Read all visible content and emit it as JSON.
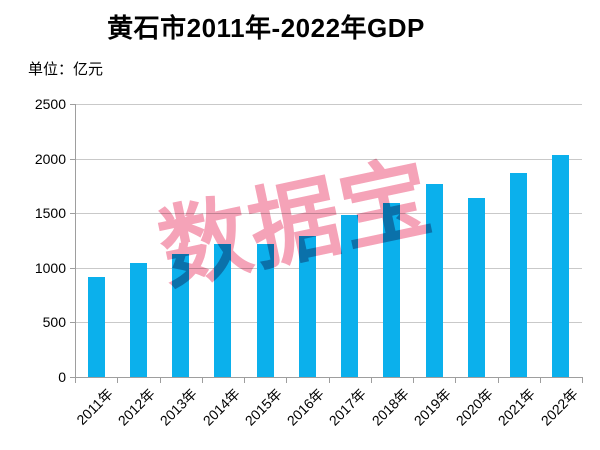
{
  "title": "黄石市2011年-2022年GDP",
  "unit_label": "单位：亿元",
  "watermark": {
    "text": "数据宝",
    "color": "#f5a3b8"
  },
  "colors": {
    "bar": "#0bb0ec",
    "gridline": "#c9c9c9",
    "axis": "#9e9e9e",
    "text": "#000000",
    "background": "#ffffff"
  },
  "chart_data": {
    "type": "bar",
    "title": "黄石市2011年-2022年GDP",
    "unit": "亿元",
    "categories": [
      "2011年",
      "2012年",
      "2013年",
      "2014年",
      "2015年",
      "2016年",
      "2017年",
      "2018年",
      "2019年",
      "2020年",
      "2021年",
      "2022年"
    ],
    "values": [
      920,
      1040,
      1130,
      1215,
      1220,
      1290,
      1480,
      1590,
      1770,
      1640,
      1865,
      2035
    ],
    "xlabel": "",
    "ylabel": "单位：亿元",
    "ylim": [
      0,
      2500
    ],
    "ytick_step": 500,
    "yticks": [
      0,
      500,
      1000,
      1500,
      2000,
      2500
    ],
    "grid": true,
    "legend": "none",
    "bar_color": "#0bb0ec"
  }
}
